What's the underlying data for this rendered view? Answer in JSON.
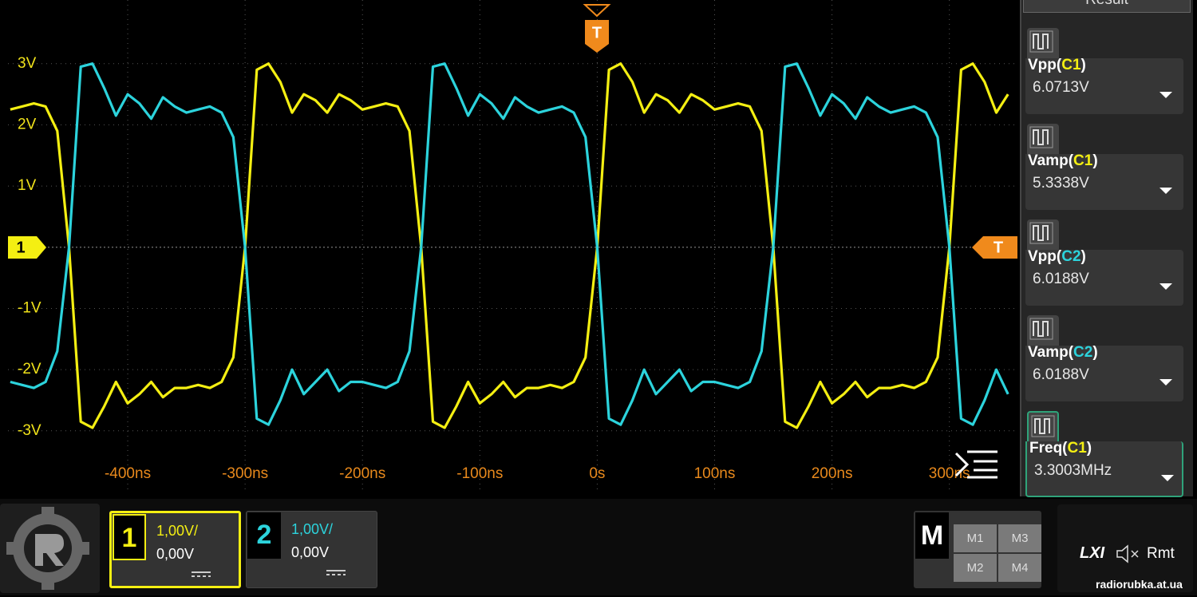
{
  "chart_data": {
    "type": "line",
    "x": [
      -500,
      -490,
      -480,
      -470,
      -460,
      -450,
      -440,
      -430,
      -420,
      -410,
      -400,
      -390,
      -380,
      -370,
      -360,
      -350,
      -340,
      -330,
      -320,
      -310,
      -300,
      -290,
      -280,
      -270,
      -260,
      -250,
      -240,
      -230,
      -220,
      -210,
      -200,
      -190,
      -180,
      -170,
      -160,
      -150,
      -140,
      -130,
      -120,
      -110,
      -100,
      -90,
      -80,
      -70,
      -60,
      -50,
      -40,
      -30,
      -20,
      -10,
      0,
      10,
      20,
      30,
      40,
      50,
      60,
      70,
      80,
      90,
      100,
      110,
      120,
      130,
      140,
      150,
      160,
      170,
      180,
      190,
      200,
      210,
      220,
      230,
      240,
      250,
      260,
      270,
      280,
      290,
      300,
      310,
      320,
      330,
      340,
      350
    ],
    "series": [
      {
        "name": "C1",
        "color": "#f4ef12",
        "values": [
          2.25,
          2.3,
          2.35,
          2.3,
          1.9,
          0,
          -2.85,
          -2.95,
          -2.6,
          -2.2,
          -2.55,
          -2.4,
          -2.2,
          -2.45,
          -2.3,
          -2.3,
          -2.25,
          -2.3,
          -2.2,
          -1.8,
          0,
          2.9,
          3.0,
          2.7,
          2.2,
          2.5,
          2.4,
          2.2,
          2.5,
          2.4,
          2.25,
          2.3,
          2.35,
          2.3,
          1.9,
          0,
          -2.85,
          -2.95,
          -2.6,
          -2.2,
          -2.55,
          -2.4,
          -2.2,
          -2.45,
          -2.3,
          -2.3,
          -2.25,
          -2.3,
          -2.2,
          -1.8,
          0,
          2.9,
          3.0,
          2.7,
          2.2,
          2.5,
          2.4,
          2.2,
          2.5,
          2.4,
          2.25,
          2.3,
          2.35,
          2.3,
          1.9,
          0,
          -2.85,
          -2.95,
          -2.6,
          -2.2,
          -2.55,
          -2.4,
          -2.2,
          -2.45,
          -2.3,
          -2.3,
          -2.25,
          -2.3,
          -2.2,
          -1.8,
          0,
          2.9,
          3.0,
          2.7,
          2.2,
          2.5
        ]
      },
      {
        "name": "C2",
        "color": "#2cd3dc",
        "values": [
          -2.2,
          -2.25,
          -2.3,
          -2.2,
          -1.7,
          0,
          2.95,
          3.0,
          2.6,
          2.15,
          2.5,
          2.35,
          2.1,
          2.45,
          2.3,
          2.2,
          2.25,
          2.3,
          2.2,
          1.8,
          0,
          -2.8,
          -2.9,
          -2.5,
          -2.0,
          -2.4,
          -2.2,
          -2.0,
          -2.35,
          -2.2,
          -2.2,
          -2.25,
          -2.3,
          -2.2,
          -1.7,
          0,
          2.95,
          3.0,
          2.6,
          2.15,
          2.5,
          2.35,
          2.1,
          2.45,
          2.3,
          2.2,
          2.25,
          2.3,
          2.2,
          1.8,
          0,
          -2.8,
          -2.9,
          -2.5,
          -2.0,
          -2.4,
          -2.2,
          -2.0,
          -2.35,
          -2.2,
          -2.2,
          -2.25,
          -2.3,
          -2.2,
          -1.7,
          0,
          2.95,
          3.0,
          2.6,
          2.15,
          2.5,
          2.35,
          2.1,
          2.45,
          2.3,
          2.2,
          2.25,
          2.3,
          2.2,
          1.8,
          0,
          -2.8,
          -2.9,
          -2.5,
          -2.0,
          -2.4
        ]
      }
    ],
    "xlim": [
      -502,
      358
    ],
    "ylim": [
      -4.02,
      4.04
    ],
    "xticks": [
      {
        "value": -400,
        "label": "-400ns"
      },
      {
        "value": -300,
        "label": "-300ns"
      },
      {
        "value": -200,
        "label": "-200ns"
      },
      {
        "value": -100,
        "label": "-100ns"
      },
      {
        "value": 0,
        "label": "0s"
      },
      {
        "value": 100,
        "label": "100ns"
      },
      {
        "value": 200,
        "label": "200ns"
      },
      {
        "value": 300,
        "label": "300ns"
      }
    ],
    "yticks": [
      {
        "value": 3,
        "label": "3V"
      },
      {
        "value": 2,
        "label": "2V"
      },
      {
        "value": 1,
        "label": "1V"
      },
      {
        "value": -1,
        "label": "-1V"
      },
      {
        "value": -2,
        "label": "-2V"
      },
      {
        "value": -3,
        "label": "-3V"
      }
    ],
    "grid": true
  },
  "ui": {
    "panel_title": "Result",
    "trigger_label": "T",
    "channel_marker": "1",
    "measurements": [
      {
        "name": "Vpp(",
        "channel": "C1",
        "close": ")",
        "value": "6.0713V"
      },
      {
        "name": "Vamp(",
        "channel": "C1",
        "close": ")",
        "value": "5.3338V"
      },
      {
        "name": "Vpp(",
        "channel": "C2",
        "close": ")",
        "value": "6.0188V"
      },
      {
        "name": "Vamp(",
        "channel": "C2",
        "close": ")",
        "value": "6.0188V"
      },
      {
        "name": "Freq(",
        "channel": "C1",
        "close": ")",
        "value": "3.3003MHz"
      }
    ],
    "channels": [
      {
        "number": "1",
        "scale": "1,00V/",
        "offset": "0,00V"
      },
      {
        "number": "2",
        "scale": "1,00V/",
        "offset": "0,00V"
      }
    ],
    "math": {
      "label": "M",
      "slots": [
        "M1",
        "M3",
        "M2",
        "M4"
      ]
    },
    "status": [
      "LXI",
      "Rmt"
    ],
    "watermark": "radiorubka.at.ua"
  }
}
